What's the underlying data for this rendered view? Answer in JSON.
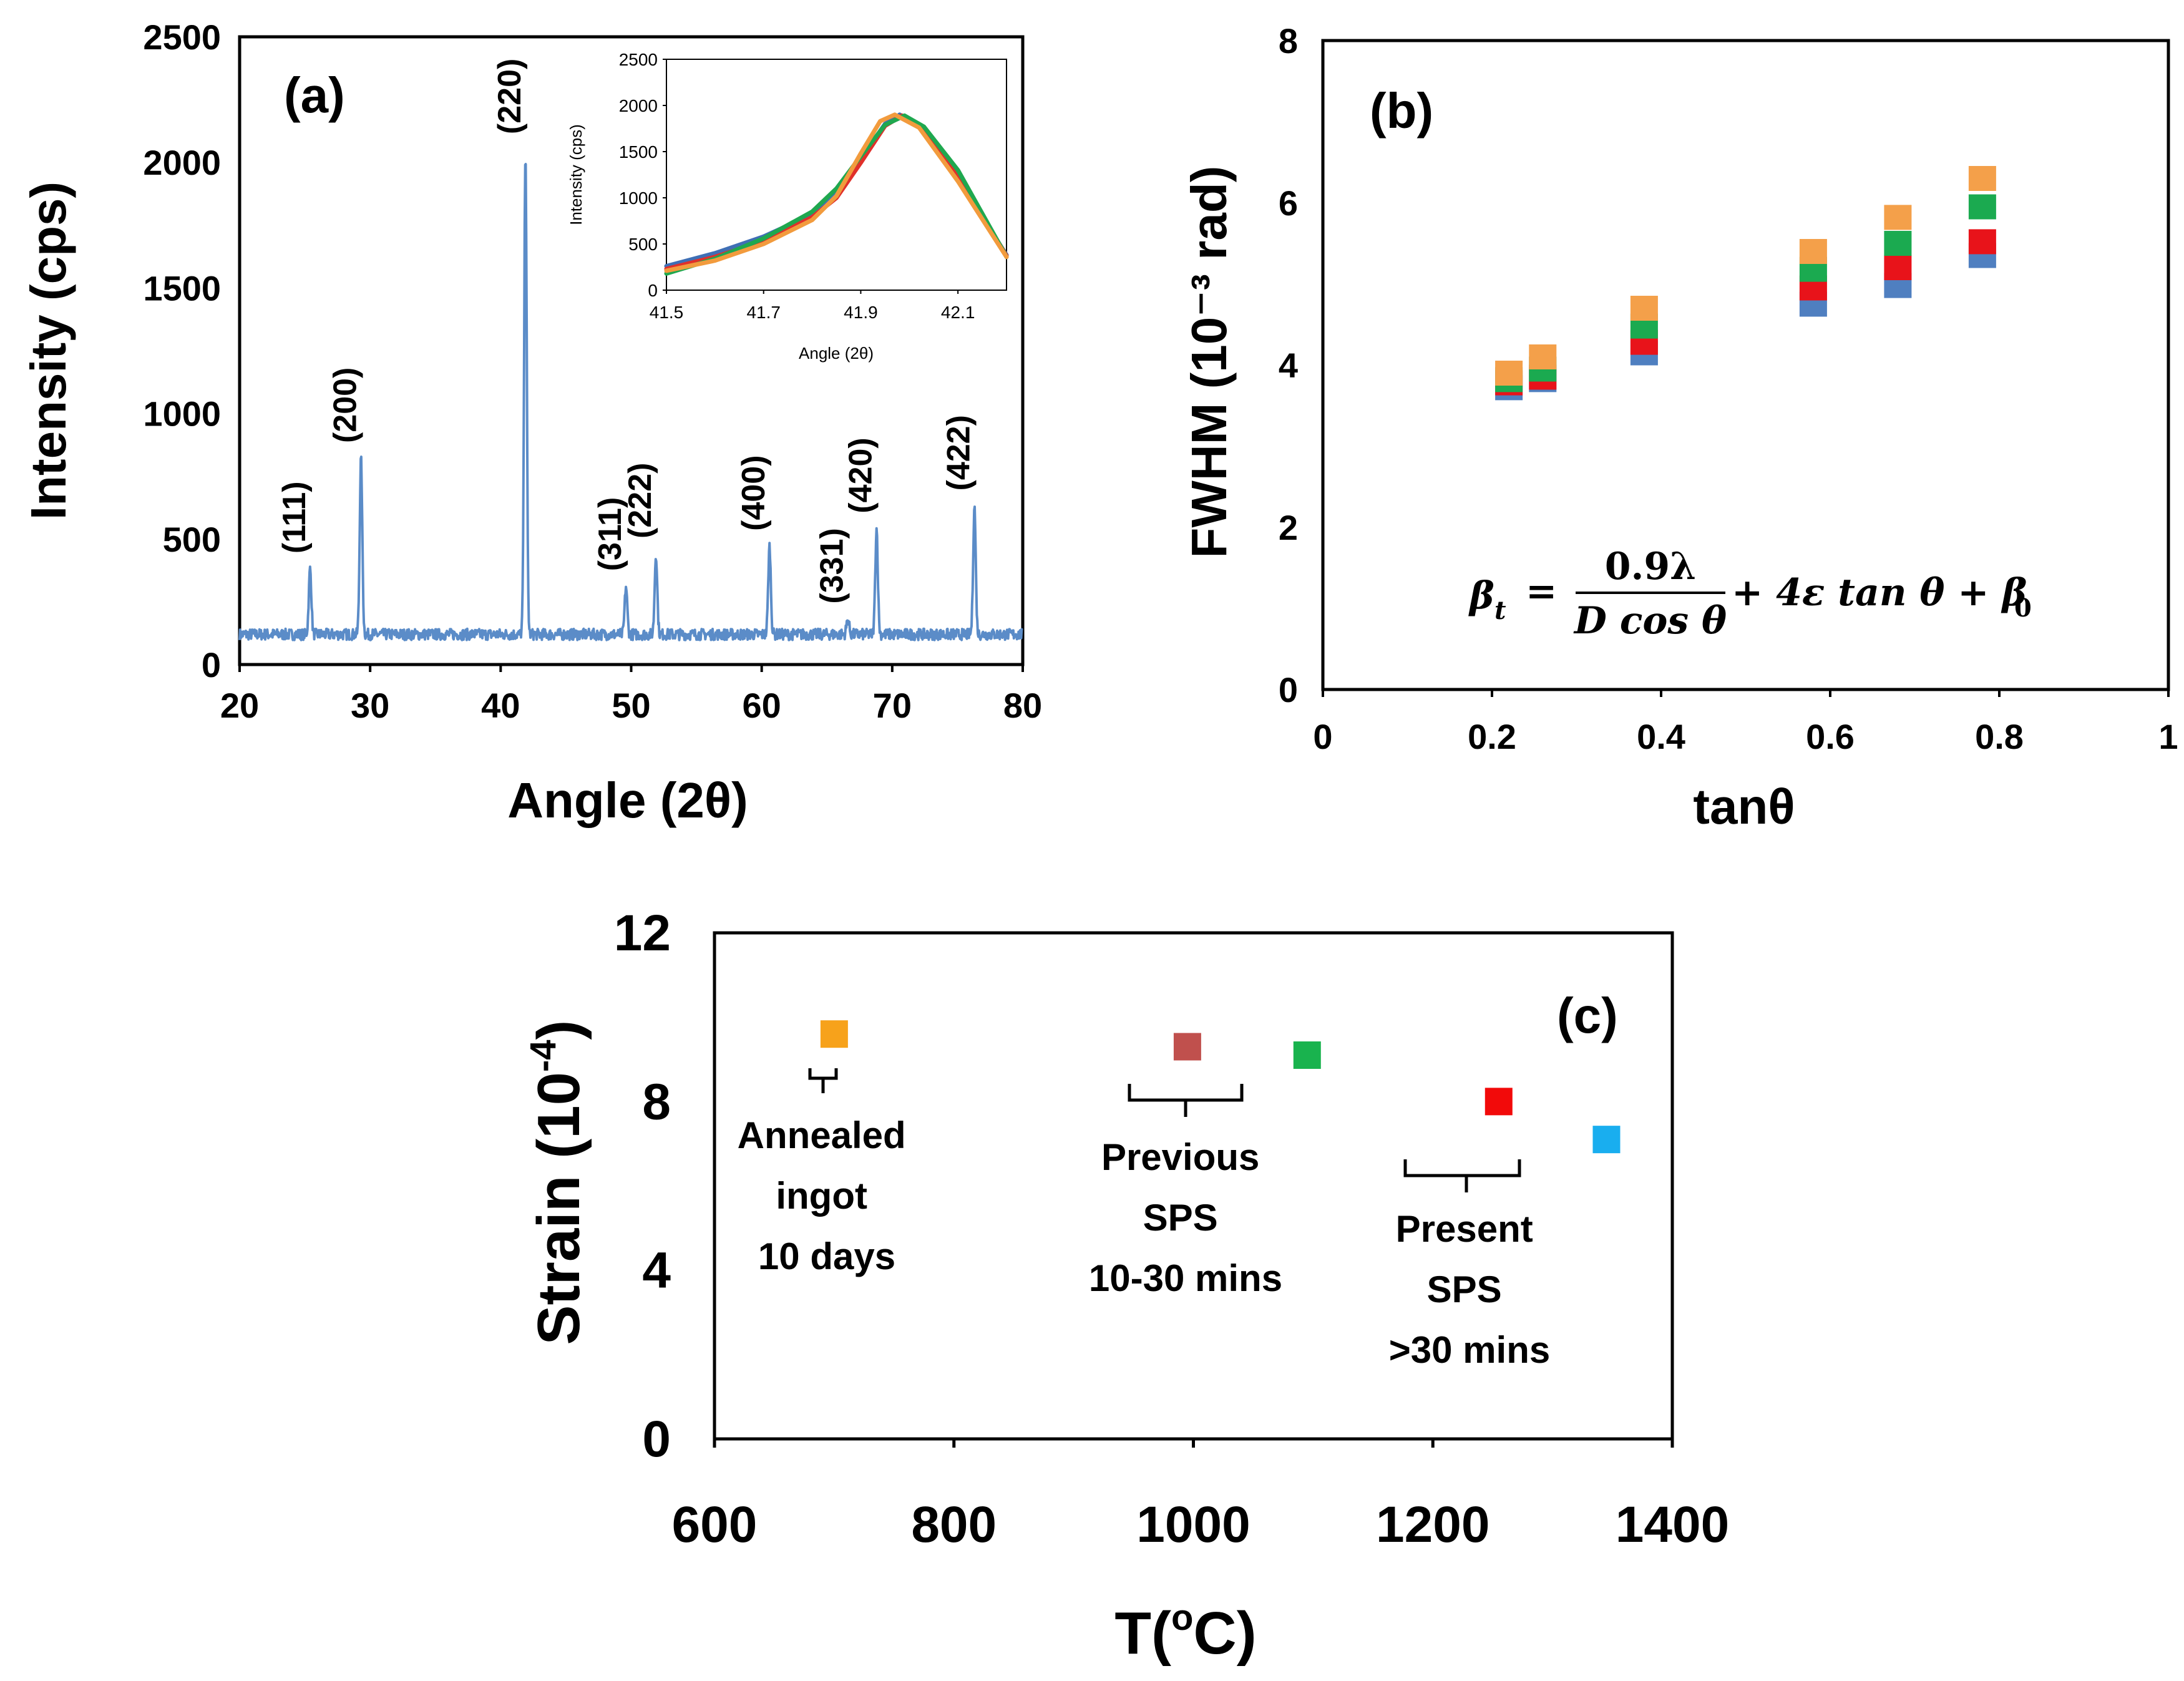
{
  "chart_data": [
    {
      "type": "line",
      "panel_label": "(a)",
      "xlabel": "Angle (2θ)",
      "ylabel": "Intensity (cps)",
      "xlim": [
        20,
        80
      ],
      "ylim": [
        0,
        2500
      ],
      "xticks": [
        "20",
        "30",
        "40",
        "50",
        "60",
        "70",
        "80"
      ],
      "yticks": [
        "0",
        "500",
        "1000",
        "1500",
        "2000",
        "2500"
      ],
      "series_color": "#5B8CC8",
      "baseline": 120,
      "peaks": [
        {
          "label": "(111)",
          "angle": 25.4,
          "intensity": 380
        },
        {
          "label": "(200)",
          "angle": 29.3,
          "intensity": 820
        },
        {
          "label": "(220)",
          "angle": 41.9,
          "intensity": 2050
        },
        {
          "label": "(311)",
          "angle": 49.6,
          "intensity": 310
        },
        {
          "label": "(222)",
          "angle": 51.9,
          "intensity": 440
        },
        {
          "label": "(400)",
          "angle": 60.6,
          "intensity": 470
        },
        {
          "label": "(331)",
          "angle": 66.6,
          "intensity": 180
        },
        {
          "label": "(420)",
          "angle": 68.8,
          "intensity": 540
        },
        {
          "label": "(422)",
          "angle": 76.3,
          "intensity": 630
        }
      ],
      "inset": {
        "type": "line",
        "xlabel": "Angle (2θ)",
        "ylabel": "Intensity (cps)",
        "xlim": [
          41.5,
          42.2
        ],
        "ylim": [
          0,
          2500
        ],
        "xticks": [
          "41.5",
          "41.7",
          "41.9",
          "42.1"
        ],
        "yticks": [
          "0",
          "500",
          "1000",
          "1500",
          "2000",
          "2500"
        ],
        "series": [
          {
            "name": "blue",
            "color": "#3F6FB5",
            "x": [
              41.5,
              41.6,
              41.7,
              41.8,
              41.85,
              41.9,
              41.95,
              41.98,
              42.02,
              42.1,
              42.2
            ],
            "y": [
              260,
              400,
              580,
              820,
              1050,
              1420,
              1800,
              1900,
              1780,
              1200,
              380
            ]
          },
          {
            "name": "red",
            "color": "#E0302A",
            "x": [
              41.5,
              41.6,
              41.7,
              41.8,
              41.85,
              41.9,
              41.95,
              41.985,
              42.03,
              42.1,
              42.2
            ],
            "y": [
              230,
              360,
              530,
              790,
              1000,
              1380,
              1780,
              1890,
              1760,
              1250,
              370
            ]
          },
          {
            "name": "green",
            "color": "#1FA84F",
            "x": [
              41.5,
              41.6,
              41.7,
              41.8,
              41.85,
              41.9,
              41.95,
              41.99,
              42.03,
              42.1,
              42.2
            ],
            "y": [
              180,
              340,
              560,
              850,
              1100,
              1450,
              1790,
              1890,
              1770,
              1300,
              360
            ]
          },
          {
            "name": "orange",
            "color": "#F29B3D",
            "x": [
              41.5,
              41.6,
              41.7,
              41.8,
              41.85,
              41.9,
              41.94,
              41.97,
              42.02,
              42.1,
              42.2
            ],
            "y": [
              210,
              320,
              500,
              760,
              1020,
              1480,
              1830,
              1900,
              1760,
              1180,
              360
            ]
          }
        ]
      }
    },
    {
      "type": "scatter",
      "panel_label": "(b)",
      "xlabel": "tanθ",
      "ylabel": "FWHM (10⁻³ rad)",
      "xlim": [
        0,
        1
      ],
      "ylim": [
        0,
        8
      ],
      "xticks": [
        "0",
        "0.2",
        "0.4",
        "0.6",
        "0.8",
        "1"
      ],
      "yticks": [
        "0",
        "2",
        "4",
        "6",
        "8"
      ],
      "series": [
        {
          "name": "blue",
          "color": "#4F7FC0",
          "x": [
            0.22,
            0.26,
            0.38,
            0.58,
            0.68,
            0.78
          ],
          "y": [
            3.72,
            3.82,
            4.15,
            4.75,
            4.98,
            5.35
          ]
        },
        {
          "name": "red",
          "color": "#E8131A",
          "x": [
            0.22,
            0.26,
            0.38,
            0.58,
            0.68,
            0.78
          ],
          "y": [
            3.78,
            3.85,
            4.28,
            4.95,
            5.2,
            5.52
          ]
        },
        {
          "name": "green",
          "color": "#1BAA50",
          "x": [
            0.22,
            0.26,
            0.38,
            0.58,
            0.68,
            0.78
          ],
          "y": [
            3.82,
            3.95,
            4.48,
            5.18,
            5.5,
            5.95
          ]
        },
        {
          "name": "orange",
          "color": "#F4A04A",
          "x": [
            0.22,
            0.26,
            0.38,
            0.58,
            0.68,
            0.78
          ],
          "y": [
            3.9,
            4.1,
            4.7,
            5.4,
            5.82,
            6.3
          ]
        }
      ],
      "equation": {
        "lhs": "β",
        "lhs_sub": "t",
        "eq": "=",
        "num": "0.9λ",
        "den": "D cos θ",
        "mid": "+ 4ε tan θ + β",
        "end_sub": "0"
      }
    },
    {
      "type": "scatter",
      "panel_label": "(c)",
      "xlabel": "T(°C)",
      "xlabel_main": "T(",
      "xlabel_sup": "o",
      "xlabel_end": "C)",
      "ylabel": "Strain (10⁻⁴)",
      "ylabel_main": "Strain (10",
      "ylabel_sup": "-4",
      "ylabel_end": ")",
      "xlim": [
        600,
        1400
      ],
      "ylim": [
        0,
        12
      ],
      "xticks": [
        "600",
        "800",
        "1000",
        "1200",
        "1400"
      ],
      "yticks": [
        "0",
        "4",
        "8",
        "12"
      ],
      "points": [
        {
          "x": 700,
          "y": 9.6,
          "color": "#F7A21B"
        },
        {
          "x": 995,
          "y": 9.3,
          "color": "#C0504D"
        },
        {
          "x": 1095,
          "y": 9.1,
          "color": "#19B34E"
        },
        {
          "x": 1255,
          "y": 8.0,
          "color": "#F20A0A"
        },
        {
          "x": 1345,
          "y": 7.1,
          "color": "#19AEEF"
        }
      ],
      "groups": [
        {
          "lines": [
            "Annealed",
            "ingot",
            "10 days"
          ]
        },
        {
          "lines": [
            "Previous",
            "SPS",
            "10-30 mins"
          ]
        },
        {
          "lines": [
            "Present",
            "SPS",
            ">30 mins"
          ]
        }
      ]
    }
  ]
}
